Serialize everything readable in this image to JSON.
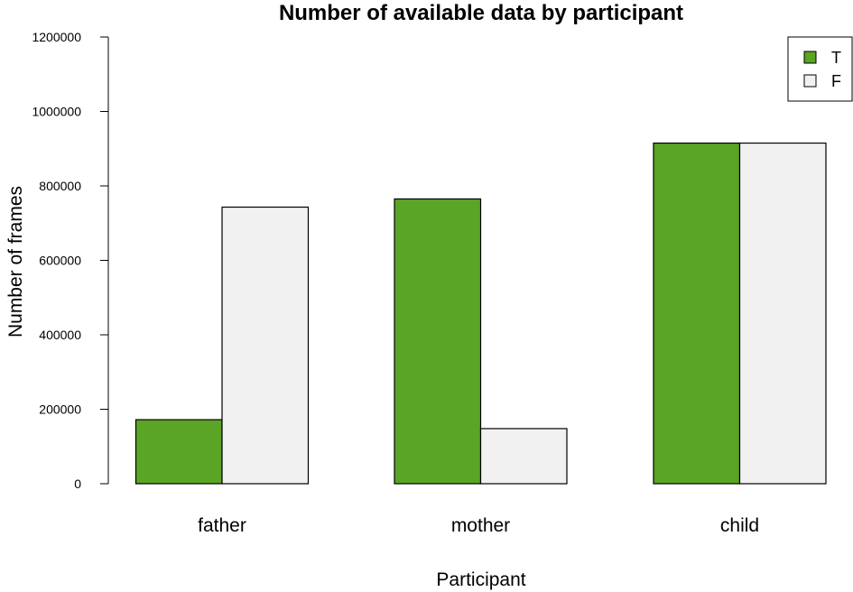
{
  "chart_data": {
    "type": "bar",
    "title": "Number of available data by participant",
    "xlabel": "Participant",
    "ylabel": "Number of frames",
    "categories": [
      "father",
      "mother",
      "child"
    ],
    "series": [
      {
        "name": "T",
        "color": "#5aa426",
        "values": [
          172000,
          765000,
          915000
        ]
      },
      {
        "name": "F",
        "color": "#f1f1f1",
        "values": [
          743000,
          148000,
          915000
        ]
      }
    ],
    "ylim": [
      0,
      1200000
    ],
    "yticks": [
      0,
      200000,
      400000,
      600000,
      800000,
      1000000,
      1200000
    ],
    "ytick_labels": [
      "0",
      "200000",
      "400000",
      "600000",
      "800000",
      "1000000",
      "1200000"
    ],
    "grid": false,
    "legend_position": "top-right"
  }
}
